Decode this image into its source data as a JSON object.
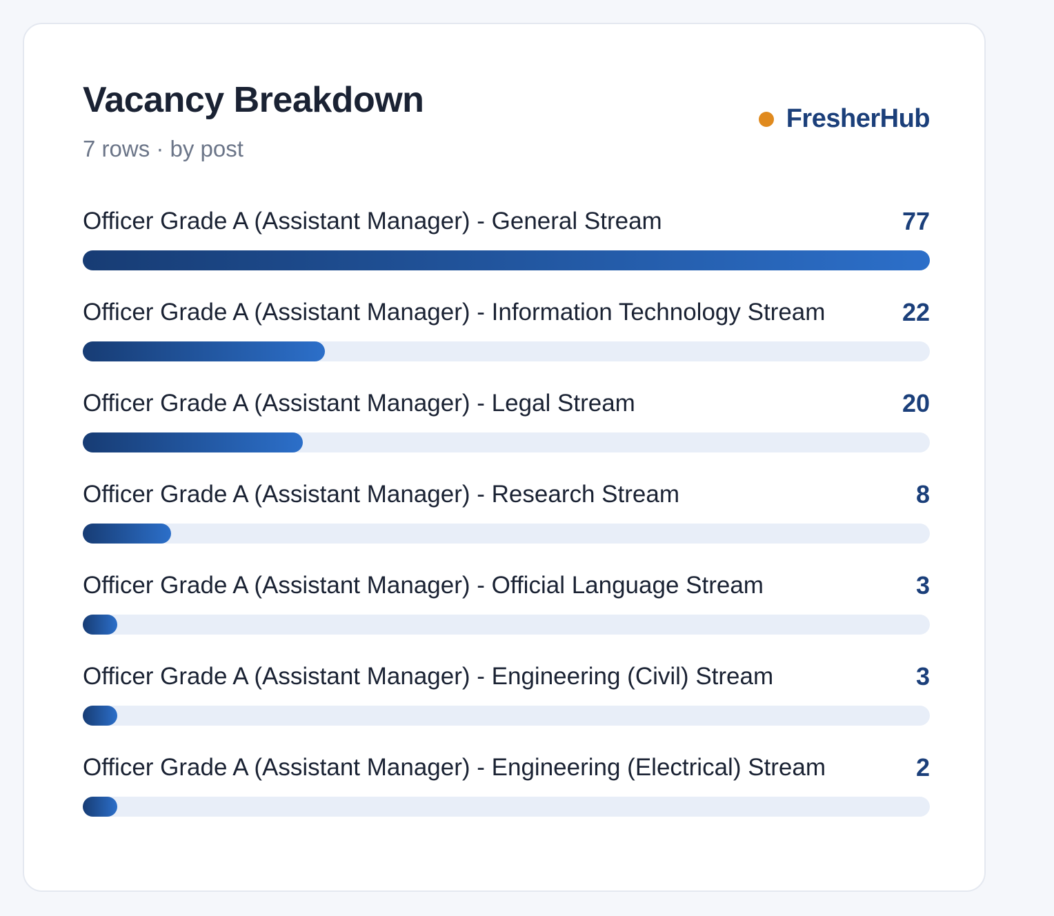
{
  "header": {
    "title": "Vacancy Breakdown",
    "subtitle": "7 rows · by post",
    "brand_name": "FresherHub"
  },
  "colors": {
    "brand_dot": "#e08a1e",
    "brand_text": "#1b3f7a",
    "value_text": "#1b3f7a",
    "bar_start": "#173c74",
    "bar_end": "#2c6fc9",
    "track": "#e8eef8"
  },
  "chart_data": {
    "type": "bar",
    "orientation": "horizontal",
    "title": "Vacancy Breakdown",
    "subtitle": "7 rows · by post",
    "xlim": [
      0,
      77
    ],
    "categories": [
      "Officer Grade A (Assistant Manager) - General Stream",
      "Officer Grade A (Assistant Manager) - Information Technology Stream",
      "Officer Grade A (Assistant Manager) - Legal Stream",
      "Officer Grade A (Assistant Manager) - Research Stream",
      "Officer Grade A (Assistant Manager) - Official Language Stream",
      "Officer Grade A (Assistant Manager) - Engineering (Civil) Stream",
      "Officer Grade A (Assistant Manager) - Engineering (Electrical) Stream"
    ],
    "values": [
      77,
      22,
      20,
      8,
      3,
      3,
      2
    ]
  }
}
